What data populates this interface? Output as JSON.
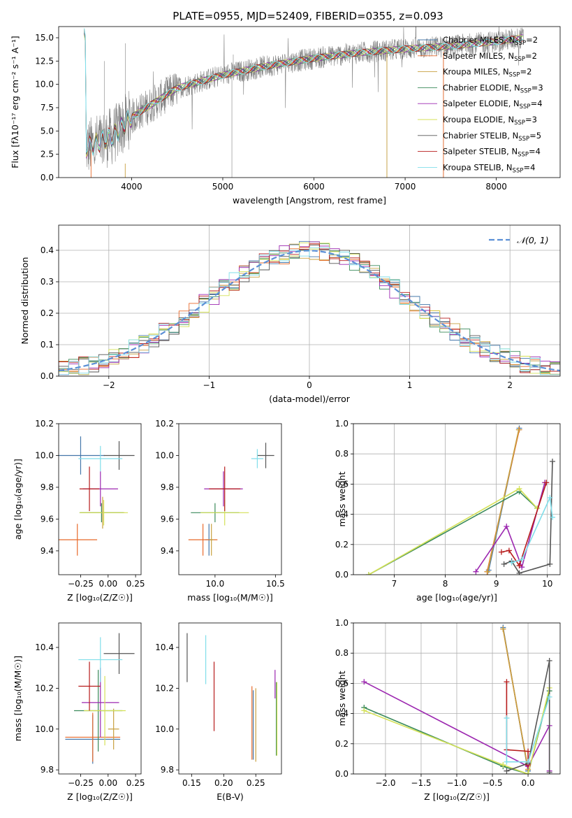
{
  "figure_title": "PLATE=0955, MJD=52409, FIBERID=0355, z=0.093",
  "series": [
    {
      "name": "Chabrier MILES, N_SSP=2",
      "name_base": "Chabrier MILES, N",
      "name_sub": "SSP",
      "name_tail": "=2",
      "color": "#4477aa"
    },
    {
      "name": "Salpeter MILES, N_SSP=2",
      "name_base": "Salpeter MILES, N",
      "name_sub": "SSP",
      "name_tail": "=2",
      "color": "#e8692a"
    },
    {
      "name": "Kroupa MILES, N_SSP=2",
      "name_base": "Kroupa MILES, N",
      "name_sub": "SSP",
      "name_tail": "=2",
      "color": "#c8a040"
    },
    {
      "name": "Chabrier ELODIE, N_SSP=3",
      "name_base": "Chabrier ELODIE, N",
      "name_sub": "SSP",
      "name_tail": "=3",
      "color": "#3a8a5a"
    },
    {
      "name": "Salpeter ELODIE, N_SSP=4",
      "name_base": "Salpeter ELODIE, N",
      "name_sub": "SSP",
      "name_tail": "=4",
      "color": "#9c27b0"
    },
    {
      "name": "Kroupa ELODIE, N_SSP=3",
      "name_base": "Kroupa ELODIE, N",
      "name_sub": "SSP",
      "name_tail": "=3",
      "color": "#d4e157"
    },
    {
      "name": "Chabrier STELIB, N_SSP=5",
      "name_base": "Chabrier STELIB, N",
      "name_sub": "SSP",
      "name_tail": "=5",
      "color": "#555555"
    },
    {
      "name": "Salpeter STELIB, N_SSP=4",
      "name_base": "Salpeter STELIB, N",
      "name_sub": "SSP",
      "name_tail": "=4",
      "color": "#b71c1c"
    },
    {
      "name": "Kroupa STELIB, N_SSP=4",
      "name_base": "Kroupa STELIB, N",
      "name_sub": "SSP",
      "name_tail": "=4",
      "color": "#80deea"
    }
  ],
  "chart_data": [
    {
      "id": "spectrum",
      "type": "line",
      "xlabel": "wavelength [Angstrom, rest frame]",
      "ylabel": "Flux [fλ10⁻¹⁷ erg cm⁻² s⁻¹ A⁻¹]",
      "xlim": [
        3200,
        8700
      ],
      "ylim": [
        0,
        16.2
      ],
      "xticks": [
        4000,
        5000,
        6000,
        7000,
        8000
      ],
      "yticks": [
        0.0,
        2.5,
        5.0,
        7.5,
        10.0,
        12.5,
        15.0
      ],
      "data_color": "#808080",
      "legend_position": "right",
      "data_trend": {
        "x": [
          3500,
          3800,
          4000,
          4500,
          5000,
          5500,
          6000,
          6500,
          7000,
          7500,
          8000,
          8300
        ],
        "y": [
          3.2,
          4.5,
          6.5,
          9.6,
          11.0,
          12.0,
          12.8,
          13.4,
          13.8,
          14.1,
          14.6,
          15.0
        ]
      }
    },
    {
      "id": "residuals",
      "type": "histogram",
      "xlabel": "(data-model)/error",
      "ylabel": "Normed distribution",
      "xlim": [
        -2.5,
        2.5
      ],
      "ylim": [
        0,
        0.48
      ],
      "xticks": [
        -2,
        -1,
        0,
        1,
        2
      ],
      "yticks": [
        0.0,
        0.1,
        0.2,
        0.3,
        0.4
      ],
      "bin_width": 0.1,
      "normal_label": "𝒩(0, 1)",
      "normal_color": "#5b8fd6",
      "legend_position": "top-right",
      "grid": true
    },
    {
      "id": "age_vs_Z",
      "type": "scatter",
      "xlabel": "Z [log₁₀(Z/Z☉)]",
      "ylabel": "age  [log₁₀(age/yr)]",
      "xlim": [
        -0.45,
        0.3
      ],
      "ylim": [
        9.25,
        10.2
      ],
      "xticks": [
        -0.25,
        0.0,
        0.25
      ],
      "yticks": [
        9.4,
        9.6,
        9.8,
        10.0,
        10.2
      ],
      "points": [
        {
          "x": -0.25,
          "y": 10.0,
          "xerr": 0.22,
          "yerr": 0.12,
          "series": 0
        },
        {
          "x": -0.28,
          "y": 9.47,
          "xerr": 0.18,
          "yerr": 0.1,
          "series": 1
        },
        {
          "x": -0.05,
          "y": 9.64,
          "xerr": 0.2,
          "yerr": 0.1,
          "series": 2
        },
        {
          "x": -0.06,
          "y": 9.64,
          "xerr": 0.2,
          "yerr": 0.06,
          "series": 3
        },
        {
          "x": -0.07,
          "y": 9.79,
          "xerr": 0.16,
          "yerr": 0.11,
          "series": 4
        },
        {
          "x": -0.04,
          "y": 9.64,
          "xerr": 0.22,
          "yerr": 0.08,
          "series": 5
        },
        {
          "x": 0.1,
          "y": 10.0,
          "xerr": 0.14,
          "yerr": 0.09,
          "series": 6
        },
        {
          "x": -0.17,
          "y": 9.79,
          "xerr": 0.09,
          "yerr": 0.14,
          "series": 7
        },
        {
          "x": -0.07,
          "y": 9.98,
          "xerr": 0.2,
          "yerr": 0.08,
          "series": 8
        }
      ]
    },
    {
      "id": "age_vs_mass",
      "type": "scatter",
      "xlabel": "mass [log₁₀(M/M☉)]",
      "ylabel": "",
      "xlim": [
        9.7,
        10.55
      ],
      "ylim": [
        9.25,
        10.2
      ],
      "xticks": [
        10.0,
        10.5
      ],
      "yticks": [
        9.4,
        9.6,
        9.8,
        10.0,
        10.2
      ],
      "points": [
        {
          "x": 9.95,
          "y": 9.47,
          "xerr": 0.03,
          "yerr": 0.1,
          "series": 0
        },
        {
          "x": 9.9,
          "y": 9.47,
          "xerr": 0.12,
          "yerr": 0.1,
          "series": 1
        },
        {
          "x": 9.97,
          "y": 9.47,
          "xerr": 0.02,
          "yerr": 0.1,
          "series": 2
        },
        {
          "x": 10.0,
          "y": 9.64,
          "xerr": 0.2,
          "yerr": 0.06,
          "series": 3
        },
        {
          "x": 10.07,
          "y": 9.79,
          "xerr": 0.16,
          "yerr": 0.11,
          "series": 4
        },
        {
          "x": 10.08,
          "y": 9.64,
          "xerr": 0.2,
          "yerr": 0.08,
          "series": 5
        },
        {
          "x": 10.42,
          "y": 10.0,
          "xerr": 0.07,
          "yerr": 0.08,
          "series": 6
        },
        {
          "x": 10.08,
          "y": 9.79,
          "xerr": 0.13,
          "yerr": 0.14,
          "series": 7
        },
        {
          "x": 10.35,
          "y": 9.98,
          "xerr": 0.05,
          "yerr": 0.06,
          "series": 8
        }
      ]
    },
    {
      "id": "mass_weight_vs_age",
      "type": "line",
      "xlabel": "age  [log₁₀(age/yr)]",
      "ylabel": "mass weight",
      "xlim": [
        6.2,
        10.25
      ],
      "ylim": [
        0,
        1.0
      ],
      "xticks": [
        7,
        8,
        9,
        10
      ],
      "yticks": [
        0.0,
        0.2,
        0.4,
        0.6,
        0.8,
        1.0
      ],
      "grid": true,
      "lines": [
        {
          "series": 0,
          "x": [
            8.85,
            9.45
          ],
          "y": [
            0.03,
            0.97
          ]
        },
        {
          "series": 1,
          "x": [
            8.82,
            9.45
          ],
          "y": [
            0.02,
            0.96
          ]
        },
        {
          "series": 2,
          "x": [
            8.83,
            9.44
          ],
          "y": [
            0.02,
            0.96
          ]
        },
        {
          "series": 3,
          "x": [
            6.5,
            9.45,
            9.8
          ],
          "y": [
            0.0,
            0.55,
            0.44
          ]
        },
        {
          "series": 4,
          "x": [
            8.6,
            9.2,
            9.5,
            9.95
          ],
          "y": [
            0.02,
            0.32,
            0.05,
            0.61
          ]
        },
        {
          "series": 5,
          "x": [
            6.5,
            9.45,
            9.8
          ],
          "y": [
            0.0,
            0.57,
            0.44
          ]
        },
        {
          "series": 6,
          "x": [
            9.15,
            9.3,
            9.45,
            10.05,
            10.1
          ],
          "y": [
            0.07,
            0.09,
            0.01,
            0.07,
            0.75
          ]
        },
        {
          "series": 7,
          "x": [
            9.1,
            9.25,
            9.45,
            9.98
          ],
          "y": [
            0.15,
            0.16,
            0.06,
            0.61
          ]
        },
        {
          "series": 8,
          "x": [
            9.3,
            9.5,
            10.05,
            10.1
          ],
          "y": [
            0.08,
            0.1,
            0.51,
            0.38
          ]
        }
      ]
    },
    {
      "id": "mass_vs_Z",
      "type": "scatter",
      "xlabel": "Z [log₁₀(Z/Z☉)]",
      "ylabel": "mass [log₁₀(M/M☉)]",
      "xlim": [
        -0.45,
        0.3
      ],
      "ylim": [
        9.78,
        10.52
      ],
      "xticks": [
        -0.25,
        0.0,
        0.25
      ],
      "yticks": [
        9.8,
        10.0,
        10.2,
        10.4
      ],
      "points": [
        {
          "x": -0.14,
          "y": 9.95,
          "xerr": 0.25,
          "yerr": 0.12,
          "series": 0
        },
        {
          "x": -0.14,
          "y": 9.96,
          "xerr": 0.25,
          "yerr": 0.12,
          "series": 1
        },
        {
          "x": 0.05,
          "y": 10.0,
          "xerr": 0.05,
          "yerr": 0.1,
          "series": 2
        },
        {
          "x": -0.09,
          "y": 10.09,
          "xerr": 0.22,
          "yerr": 0.2,
          "series": 3
        },
        {
          "x": -0.07,
          "y": 10.13,
          "xerr": 0.17,
          "yerr": 0.17,
          "series": 4
        },
        {
          "x": -0.03,
          "y": 10.09,
          "xerr": 0.19,
          "yerr": 0.17,
          "series": 5
        },
        {
          "x": 0.1,
          "y": 10.37,
          "xerr": 0.14,
          "yerr": 0.1,
          "series": 6
        },
        {
          "x": -0.17,
          "y": 10.21,
          "xerr": 0.1,
          "yerr": 0.12,
          "series": 7
        },
        {
          "x": -0.07,
          "y": 10.34,
          "xerr": 0.2,
          "yerr": 0.11,
          "series": 8
        }
      ]
    },
    {
      "id": "mass_vs_ebv",
      "type": "scatter",
      "xlabel": "E(B-V)",
      "ylabel": "",
      "xlim": [
        0.13,
        0.29
      ],
      "ylim": [
        9.78,
        10.52
      ],
      "xticks": [
        0.15,
        0.2,
        0.25
      ],
      "yticks": [
        9.8,
        10.0,
        10.2,
        10.4
      ],
      "points": [
        {
          "x": 0.246,
          "y": 10.02,
          "xerr": 0,
          "yerr": 0.17,
          "series": 0
        },
        {
          "x": 0.244,
          "y": 10.03,
          "xerr": 0,
          "yerr": 0.18,
          "series": 1
        },
        {
          "x": 0.25,
          "y": 10.02,
          "xerr": 0,
          "yerr": 0.18,
          "series": 2
        },
        {
          "x": 0.282,
          "y": 10.05,
          "xerr": 0,
          "yerr": 0.18,
          "series": 3
        },
        {
          "x": 0.28,
          "y": 10.22,
          "xerr": 0,
          "yerr": 0.07,
          "series": 4
        },
        {
          "x": 0.283,
          "y": 10.05,
          "xerr": 0,
          "yerr": 0.18,
          "series": 5
        },
        {
          "x": 0.143,
          "y": 10.35,
          "xerr": 0,
          "yerr": 0.12,
          "series": 6
        },
        {
          "x": 0.185,
          "y": 10.16,
          "xerr": 0,
          "yerr": 0.17,
          "series": 7
        },
        {
          "x": 0.172,
          "y": 10.34,
          "xerr": 0,
          "yerr": 0.12,
          "series": 8
        }
      ]
    },
    {
      "id": "mass_weight_vs_Z",
      "type": "line",
      "xlabel": "Z [log₁₀(Z/Z☉)]",
      "ylabel": "mass weight",
      "xlim": [
        -2.45,
        0.45
      ],
      "ylim": [
        0,
        1.0
      ],
      "xticks": [
        -2.0,
        -1.5,
        -1.0,
        -0.5,
        0.0
      ],
      "yticks": [
        0.0,
        0.2,
        0.4,
        0.6,
        0.8,
        1.0
      ],
      "grid": true,
      "lines": [
        {
          "series": 0,
          "x": [
            -0.35,
            0.0
          ],
          "y": [
            0.97,
            0.02
          ]
        },
        {
          "series": 1,
          "x": [
            -0.35,
            0.0
          ],
          "y": [
            0.96,
            0.03
          ]
        },
        {
          "series": 2,
          "x": [
            -0.35,
            0.0
          ],
          "y": [
            0.96,
            0.03
          ]
        },
        {
          "series": 3,
          "x": [
            -2.3,
            -0.35,
            0.0,
            0.3
          ],
          "y": [
            0.44,
            0.05,
            0.0,
            0.55
          ]
        },
        {
          "series": 4,
          "x": [
            -2.3,
            0.0,
            0.3,
            0.3
          ],
          "y": [
            0.61,
            0.05,
            0.32,
            0.02
          ]
        },
        {
          "series": 5,
          "x": [
            -2.3,
            -0.35,
            0.0,
            0.3
          ],
          "y": [
            0.42,
            0.06,
            0.0,
            0.57
          ]
        },
        {
          "series": 6,
          "x": [
            -0.3,
            0.0,
            0.3,
            0.3
          ],
          "y": [
            0.02,
            0.07,
            0.75,
            0.01
          ]
        },
        {
          "series": 7,
          "x": [
            -0.3,
            -0.3,
            0.0,
            0.0
          ],
          "y": [
            0.61,
            0.16,
            0.15,
            0.06
          ]
        },
        {
          "series": 8,
          "x": [
            -0.3,
            -0.3,
            0.0,
            0.3
          ],
          "y": [
            0.37,
            0.08,
            0.08,
            0.51
          ]
        }
      ]
    }
  ]
}
